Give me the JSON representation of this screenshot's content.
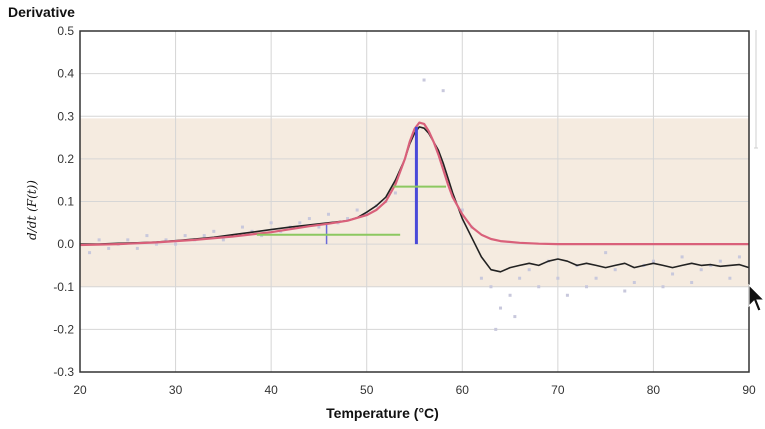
{
  "chart_data": {
    "type": "line",
    "title": "Derivative",
    "xlabel": "Temperature (°C)",
    "ylabel": "d/dt (F(t))",
    "xlim": [
      20,
      90
    ],
    "ylim": [
      -0.3,
      0.5
    ],
    "xticks": [
      20,
      30,
      40,
      50,
      60,
      70,
      80,
      90
    ],
    "yticks": [
      0.5,
      0.4,
      0.3,
      0.2,
      0.1,
      0.0,
      -0.1,
      -0.2,
      -0.3
    ],
    "xtick_labels": [
      "20",
      "30",
      "40",
      "50",
      "60",
      "70",
      "80",
      "90"
    ],
    "ytick_labels": [
      "0.5",
      "0.4",
      "0.3",
      "0.2",
      "0.1",
      "0.0",
      "-0.1",
      "-0.2",
      "-0.3"
    ],
    "grid": true,
    "shaded_band": {
      "y_from": -0.1,
      "y_to": 0.295,
      "color": "#f5ebe0"
    },
    "series": [
      {
        "role": "measured",
        "color": "#222222",
        "x": [
          20,
          22,
          24,
          26,
          28,
          30,
          32,
          34,
          36,
          38,
          40,
          42,
          44,
          46,
          48,
          49,
          50,
          51,
          52,
          53,
          54,
          54.5,
          55,
          55.5,
          56,
          56.5,
          57,
          57.5,
          58,
          58.5,
          59,
          60,
          61,
          62,
          63,
          64,
          65,
          66,
          67,
          68,
          69,
          70,
          71,
          72,
          73,
          74,
          75,
          76,
          77,
          78,
          79,
          80,
          81,
          82,
          83,
          84,
          85,
          86,
          87,
          88,
          89,
          90
        ],
        "y": [
          0.0,
          0.0,
          0.002,
          0.003,
          0.005,
          0.008,
          0.012,
          0.016,
          0.022,
          0.028,
          0.034,
          0.04,
          0.045,
          0.05,
          0.055,
          0.062,
          0.075,
          0.09,
          0.11,
          0.15,
          0.2,
          0.235,
          0.26,
          0.275,
          0.272,
          0.26,
          0.24,
          0.22,
          0.19,
          0.155,
          0.12,
          0.06,
          0.015,
          -0.03,
          -0.06,
          -0.065,
          -0.055,
          -0.05,
          -0.045,
          -0.05,
          -0.04,
          -0.035,
          -0.04,
          -0.05,
          -0.045,
          -0.05,
          -0.055,
          -0.05,
          -0.045,
          -0.055,
          -0.05,
          -0.045,
          -0.05,
          -0.055,
          -0.05,
          -0.045,
          -0.05,
          -0.048,
          -0.052,
          -0.05,
          -0.048,
          -0.055
        ]
      },
      {
        "role": "fit",
        "color": "#d9607a",
        "x": [
          20,
          24,
          28,
          32,
          36,
          40,
          42,
          44,
          46,
          48,
          50,
          51,
          52,
          53,
          54,
          54.5,
          55,
          55.5,
          56,
          56.5,
          57,
          57.5,
          58,
          58.5,
          59,
          60,
          61,
          62,
          63,
          64,
          66,
          68,
          70,
          75,
          80,
          85,
          90
        ],
        "y": [
          -0.002,
          0.0,
          0.004,
          0.01,
          0.018,
          0.028,
          0.035,
          0.042,
          0.048,
          0.055,
          0.068,
          0.08,
          0.1,
          0.14,
          0.2,
          0.24,
          0.27,
          0.285,
          0.282,
          0.265,
          0.24,
          0.21,
          0.175,
          0.14,
          0.11,
          0.07,
          0.04,
          0.022,
          0.012,
          0.007,
          0.003,
          0.001,
          0.0,
          0.0,
          0.0,
          0.0,
          0.0
        ]
      }
    ],
    "scatter": {
      "color": "#c8c8dc",
      "x": [
        21,
        22,
        23,
        24,
        25,
        26,
        27,
        28,
        29,
        30,
        31,
        32,
        33,
        34,
        35,
        36,
        37,
        38,
        39,
        40,
        41,
        42,
        43,
        44,
        45,
        46,
        47,
        48,
        49,
        50,
        51,
        52,
        53,
        56,
        58,
        60,
        61,
        62,
        63,
        63.5,
        64,
        65,
        65.5,
        66,
        67,
        68,
        69,
        70,
        71,
        72,
        73,
        74,
        75,
        76,
        77,
        78,
        79,
        80,
        81,
        82,
        83,
        84,
        85,
        86,
        87,
        88,
        89
      ],
      "y": [
        -0.02,
        0.01,
        -0.01,
        0.0,
        0.01,
        -0.01,
        0.02,
        0.0,
        0.01,
        0.0,
        0.02,
        0.01,
        0.02,
        0.03,
        0.01,
        0.02,
        0.04,
        0.03,
        0.02,
        0.05,
        0.03,
        0.04,
        0.05,
        0.06,
        0.04,
        0.07,
        0.05,
        0.06,
        0.08,
        0.07,
        0.09,
        0.1,
        0.12,
        0.385,
        0.36,
        0.08,
        0.04,
        -0.08,
        -0.1,
        -0.2,
        -0.15,
        -0.12,
        -0.17,
        -0.08,
        -0.06,
        -0.1,
        -0.04,
        -0.08,
        -0.12,
        -0.05,
        -0.1,
        -0.08,
        -0.02,
        -0.06,
        -0.11,
        -0.09,
        -0.05,
        -0.04,
        -0.1,
        -0.07,
        -0.03,
        -0.09,
        -0.06,
        -0.05,
        -0.04,
        -0.08,
        -0.03
      ]
    },
    "markers": [
      {
        "kind": "peak-line",
        "color": "#4a4ad8",
        "x": 55.2,
        "y_from": 0.0,
        "y_to": 0.275
      },
      {
        "kind": "half-width",
        "color": "#8cc860",
        "x_from": 52.8,
        "x_to": 58.3,
        "y": 0.135
      },
      {
        "kind": "peak-line",
        "color": "#6b6bd8",
        "x": 45.8,
        "y_from": 0.0,
        "y_to": 0.045
      },
      {
        "kind": "half-width",
        "color": "#8cc860",
        "x_from": 38.5,
        "x_to": 53.5,
        "y": 0.022
      }
    ]
  }
}
